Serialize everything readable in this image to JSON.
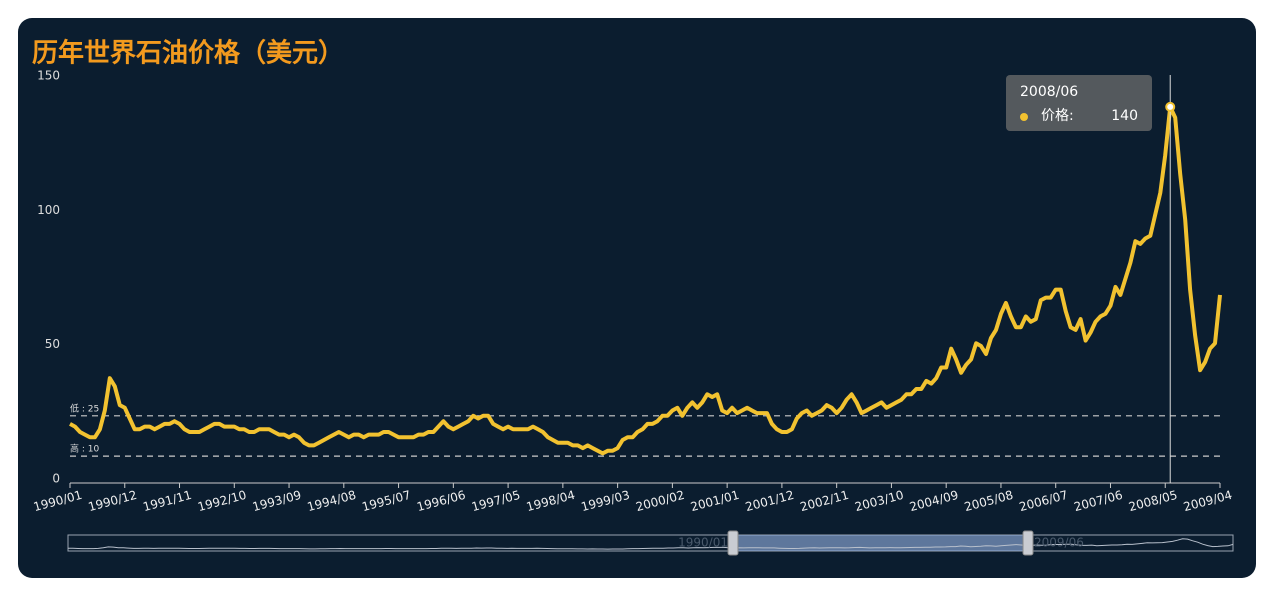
{
  "chart_data": {
    "type": "line",
    "title": "历年世界石油价格（美元）",
    "categories": [
      "1990/01",
      null,
      null,
      null,
      null,
      null,
      null,
      null,
      null,
      null,
      null,
      "1990/12",
      null,
      null,
      null,
      null,
      null,
      null,
      null,
      null,
      null,
      null,
      "1991/11",
      null,
      null,
      null,
      null,
      null,
      null,
      null,
      null,
      null,
      null,
      "1992/10",
      null,
      null,
      null,
      null,
      null,
      null,
      null,
      null,
      null,
      null,
      "1993/09",
      null,
      null,
      null,
      null,
      null,
      null,
      null,
      null,
      null,
      null,
      "1994/08",
      null,
      null,
      null,
      null,
      null,
      null,
      null,
      null,
      null,
      null,
      "1995/07",
      null,
      null,
      null,
      null,
      null,
      null,
      null,
      null,
      null,
      null,
      "1996/06",
      null,
      null,
      null,
      null,
      null,
      null,
      null,
      null,
      null,
      null,
      "1997/05",
      null,
      null,
      null,
      null,
      null,
      null,
      null,
      null,
      null,
      null,
      "1998/04",
      null,
      null,
      null,
      null,
      null,
      null,
      null,
      null,
      null,
      null,
      "1999/03",
      null,
      null,
      null,
      null,
      null,
      null,
      null,
      null,
      null,
      null,
      "2000/02",
      null,
      null,
      null,
      null,
      null,
      null,
      null,
      null,
      null,
      null,
      "2001/01",
      null,
      null,
      null,
      null,
      null,
      null,
      null,
      null,
      null,
      null,
      "2001/12",
      null,
      null,
      null,
      null,
      null,
      null,
      null,
      null,
      null,
      null,
      "2002/11",
      null,
      null,
      null,
      null,
      null,
      null,
      null,
      null,
      null,
      null,
      "2003/10",
      null,
      null,
      null,
      null,
      null,
      null,
      null,
      null,
      null,
      null,
      "2004/09",
      null,
      null,
      null,
      null,
      null,
      null,
      null,
      null,
      null,
      null,
      "2005/08",
      null,
      null,
      null,
      null,
      null,
      null,
      null,
      null,
      null,
      null,
      "2006/07",
      null,
      null,
      null,
      null,
      null,
      null,
      null,
      null,
      null,
      null,
      "2007/06",
      null,
      null,
      null,
      null,
      null,
      null,
      null,
      null,
      null,
      null,
      "2008/05",
      null,
      null,
      null,
      null,
      null,
      null,
      null,
      null,
      null,
      null,
      "2009/04"
    ],
    "series": [
      {
        "name": "价格",
        "color": "#f2c230",
        "values": [
          22,
          21,
          19,
          18,
          17,
          17,
          20,
          27,
          39,
          36,
          29,
          28,
          24,
          20,
          20,
          21,
          21,
          20,
          21,
          22,
          22,
          23,
          22,
          20,
          19,
          19,
          19,
          20,
          21,
          22,
          22,
          21,
          21,
          21,
          20,
          20,
          19,
          19,
          20,
          20,
          20,
          19,
          18,
          18,
          17,
          18,
          17,
          15,
          14,
          14,
          15,
          16,
          17,
          18,
          19,
          18,
          17,
          18,
          18,
          17,
          18,
          18,
          18,
          19,
          19,
          18,
          17,
          17,
          17,
          17,
          18,
          18,
          19,
          19,
          21,
          23,
          21,
          20,
          21,
          22,
          23,
          25,
          24,
          25,
          25,
          22,
          21,
          20,
          21,
          20,
          20,
          20,
          20,
          21,
          20,
          19,
          17,
          16,
          15,
          15,
          15,
          14,
          14,
          13,
          14,
          13,
          12,
          11,
          12,
          12,
          13,
          16,
          17,
          17,
          19,
          20,
          22,
          22,
          23,
          25,
          25,
          27,
          28,
          25,
          28,
          30,
          28,
          30,
          33,
          32,
          33,
          27,
          26,
          28,
          26,
          27,
          28,
          27,
          26,
          26,
          26,
          22,
          20,
          19,
          19,
          20,
          24,
          26,
          27,
          25,
          26,
          27,
          29,
          28,
          26,
          28,
          31,
          33,
          30,
          26,
          27,
          28,
          29,
          30,
          28,
          29,
          30,
          31,
          33,
          33,
          35,
          35,
          38,
          37,
          39,
          43,
          43,
          50,
          46,
          41,
          44,
          46,
          52,
          51,
          48,
          54,
          57,
          63,
          67,
          62,
          58,
          58,
          62,
          60,
          61,
          68,
          69,
          69,
          72,
          72,
          64,
          58,
          57,
          61,
          53,
          56,
          60,
          62,
          63,
          66,
          73,
          70,
          76,
          82,
          90,
          89,
          91,
          92,
          100,
          108,
          122,
          140,
          136,
          115,
          98,
          72,
          55,
          42,
          45,
          50,
          52,
          70
        ]
      }
    ],
    "ylim": [
      0,
      150
    ],
    "yticks": [
      0,
      50,
      100,
      150
    ],
    "grid": false,
    "mark_lines": [
      {
        "label": "低 : 25",
        "value": 25
      },
      {
        "label": "高 : 10",
        "value": 10
      }
    ],
    "tooltip": {
      "title": "2008/06",
      "label": "价格:",
      "value": 140
    },
    "zoom": {
      "start_label": "1990/01",
      "end_label": "2009/06"
    }
  }
}
